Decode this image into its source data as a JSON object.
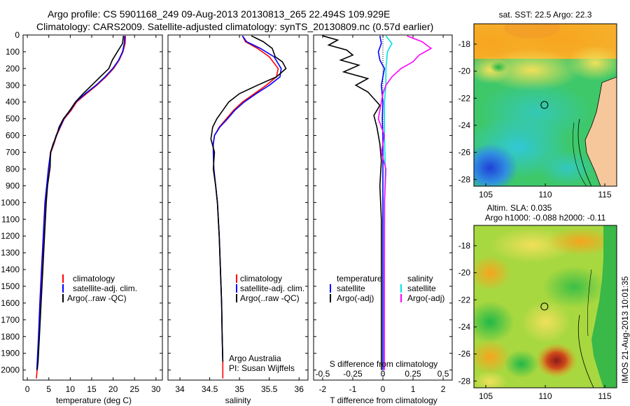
{
  "header": {
    "line1": "Argo profile: CS 5901168_249 09-Aug-2013 20130813_265 22.494S 109.929E",
    "line2": "Climatology: CARS2009. Satellite-adjusted climatology: synTS_20130809.nc (0.57d earlier)"
  },
  "colors": {
    "climatology": "#ff0000",
    "satellite_adj_clim": "#0000ff",
    "argo": "#000000",
    "t_satellite": "#0000ff",
    "s_satellite": "#00e0e0",
    "s_argo": "#ff00ff",
    "land": "#f5c79a"
  },
  "chart_data": [
    {
      "type": "line",
      "panel": "temperature",
      "xlabel": "temperature (deg C)",
      "xlim": [
        -1,
        31.5
      ],
      "xticks": [
        0,
        5,
        10,
        15,
        20,
        25,
        30
      ],
      "ylim": [
        0,
        2060
      ],
      "yticks": [
        0,
        100,
        200,
        300,
        400,
        500,
        600,
        700,
        800,
        900,
        1000,
        1100,
        1200,
        1300,
        1400,
        1500,
        1600,
        1700,
        1800,
        1900,
        2000
      ],
      "legend": [
        "climatology",
        "satellite-adj. clim.",
        "Argo(..raw -QC)"
      ],
      "series": [
        {
          "name": "climatology",
          "x": [
            22.9,
            22.8,
            22.3,
            21.4,
            20.1,
            18.3,
            16.2,
            13.8,
            11.5,
            10.2,
            8.6,
            7.7,
            6.8,
            6.2,
            5.5,
            5.0,
            4.6,
            4.2,
            3.8,
            3.4,
            3.0,
            2.7,
            2.4,
            2.2,
            2.1
          ],
          "y": [
            5,
            50,
            100,
            150,
            200,
            250,
            300,
            350,
            400,
            450,
            500,
            550,
            600,
            650,
            700,
            800,
            900,
            1000,
            1200,
            1400,
            1600,
            1800,
            1950,
            2020,
            2050
          ]
        },
        {
          "name": "satellite-adj. clim.",
          "x": [
            22.7,
            22.6,
            22.2,
            21.3,
            19.9,
            18.1,
            16.0,
            13.5,
            11.3,
            10.0,
            8.5,
            7.6,
            6.7,
            6.1,
            5.4,
            4.9,
            4.5,
            4.1,
            3.7,
            3.3,
            2.9,
            2.6,
            2.3,
            2.2
          ],
          "y": [
            5,
            50,
            100,
            150,
            200,
            250,
            300,
            350,
            400,
            450,
            500,
            550,
            600,
            650,
            700,
            800,
            900,
            1000,
            1200,
            1400,
            1600,
            1800,
            1950,
            2000
          ]
        },
        {
          "name": "Argo(..raw -QC)",
          "x": [
            22.4,
            22.2,
            21.0,
            19.8,
            19.0,
            17.0,
            15.0,
            13.0,
            11.2,
            9.9,
            8.4,
            7.4,
            6.8,
            6.0,
            5.4,
            5.3,
            4.7,
            4.4,
            4.0,
            3.6,
            3.2,
            2.8,
            2.5,
            2.3
          ],
          "y": [
            5,
            50,
            100,
            150,
            200,
            250,
            300,
            350,
            400,
            450,
            500,
            550,
            600,
            650,
            700,
            790,
            900,
            1000,
            1200,
            1400,
            1600,
            1800,
            1950,
            2000
          ]
        }
      ]
    },
    {
      "type": "line",
      "panel": "salinity",
      "xlabel": "salinity",
      "xlim": [
        33.8,
        36.15
      ],
      "xticks": [
        34,
        34.5,
        35,
        35.5,
        36
      ],
      "ylim": [
        0,
        2060
      ],
      "legend": [
        "climatology",
        "satellite-adj. clim.",
        "Argo(..raw -QC)"
      ],
      "annotation": [
        "Argo Australia",
        "PI: Susan Wijffels"
      ],
      "series": [
        {
          "name": "climatology",
          "x": [
            35.05,
            35.1,
            35.3,
            35.5,
            35.65,
            35.62,
            35.45,
            35.25,
            35.05,
            34.9,
            34.78,
            34.66,
            34.58,
            34.56,
            34.56,
            34.57,
            34.6,
            34.63,
            34.66,
            34.68,
            34.7,
            34.71,
            34.72,
            34.72
          ],
          "y": [
            5,
            40,
            80,
            130,
            200,
            250,
            300,
            350,
            400,
            450,
            500,
            550,
            600,
            650,
            700,
            800,
            900,
            1000,
            1200,
            1400,
            1600,
            1800,
            1950,
            2050
          ]
        },
        {
          "name": "satellite-adj. clim.",
          "x": [
            35.05,
            35.12,
            35.35,
            35.58,
            35.7,
            35.68,
            35.5,
            35.28,
            35.08,
            34.92,
            34.8,
            34.67,
            34.58,
            34.56,
            34.56,
            34.57,
            34.6,
            34.63,
            34.66,
            34.68,
            34.7,
            34.71,
            34.72
          ],
          "y": [
            5,
            40,
            80,
            130,
            200,
            250,
            300,
            350,
            400,
            450,
            500,
            550,
            600,
            650,
            700,
            800,
            900,
            1000,
            1200,
            1400,
            1600,
            1800,
            1950
          ]
        },
        {
          "name": "Argo(..raw -QC)",
          "x": [
            35.2,
            35.4,
            35.55,
            35.6,
            35.72,
            35.78,
            35.62,
            35.3,
            35.0,
            34.82,
            34.72,
            34.62,
            34.55,
            34.52,
            34.58,
            34.56,
            34.6,
            34.63,
            34.66,
            34.68,
            34.7,
            34.71,
            34.72
          ],
          "y": [
            5,
            40,
            80,
            130,
            160,
            200,
            250,
            300,
            350,
            400,
            450,
            500,
            550,
            620,
            700,
            800,
            900,
            1000,
            1200,
            1400,
            1600,
            1800,
            1950
          ]
        }
      ]
    },
    {
      "type": "line",
      "panel": "difference",
      "xlabel": "T difference from climatology",
      "xlabel_top": "S difference from climatology",
      "xlim": [
        -2.3,
        2.3
      ],
      "xticks": [
        -2,
        -1,
        0,
        1,
        2
      ],
      "xticks_s": [
        -0.5,
        -0.25,
        0,
        0.25,
        0.5
      ],
      "ylim": [
        0,
        2060
      ],
      "legend_temperature": {
        "title": "temperature",
        "entries": [
          "satellite",
          "Argo(-adj)"
        ]
      },
      "legend_salinity": {
        "title": "salinity",
        "entries": [
          "satellite",
          "Argo(-adj)"
        ]
      },
      "series": [
        {
          "name": "temperature satellite",
          "x": [
            -0.1,
            -0.05,
            -0.15,
            -0.1,
            0.05,
            -0.05,
            0.0,
            -0.02,
            0.0,
            0.0,
            0.0,
            0.0,
            0.0,
            0.0
          ],
          "y": [
            5,
            50,
            100,
            150,
            200,
            300,
            400,
            500,
            600,
            800,
            1000,
            1400,
            1800,
            2000
          ]
        },
        {
          "name": "temperature Argo(-adj)",
          "x": [
            -2.0,
            -1.5,
            -1.8,
            -1.2,
            -1.0,
            -1.4,
            -0.8,
            -1.3,
            -0.5,
            -0.9,
            -0.5,
            -0.3,
            -0.1,
            -0.3,
            -0.2,
            -0.1,
            -0.05,
            -0.1,
            -0.05,
            -0.05,
            -0.05,
            -0.05
          ],
          "y": [
            5,
            30,
            60,
            90,
            120,
            150,
            180,
            220,
            260,
            300,
            340,
            380,
            420,
            480,
            550,
            650,
            750,
            900,
            1100,
            1400,
            1700,
            2000
          ]
        },
        {
          "name": "salinity satellite",
          "x": [
            0.1,
            0.3,
            0.15,
            0.1,
            0.1,
            0.05,
            0.05,
            0.08,
            0.06,
            0.05,
            0.05,
            0.05
          ],
          "y": [
            5,
            50,
            100,
            200,
            300,
            400,
            600,
            800,
            1000,
            1400,
            1800,
            2000
          ]
        },
        {
          "name": "salinity Argo(-adj)",
          "x": [
            0.8,
            1.3,
            1.6,
            1.2,
            1.0,
            0.6,
            0.3,
            0.1,
            0.0,
            -0.05,
            -0.15,
            0.05,
            -0.05,
            0.1,
            0.05,
            0.05,
            0.05,
            0.05
          ],
          "y": [
            5,
            40,
            80,
            120,
            160,
            200,
            250,
            300,
            350,
            400,
            500,
            600,
            700,
            800,
            1000,
            1400,
            1800,
            2000
          ]
        }
      ]
    }
  ],
  "maps": [
    {
      "title": "sat. SST: 22.5 Argo: 22.3",
      "xticks": [
        105,
        110,
        115
      ],
      "yticks": [
        -18,
        -20,
        -22,
        -24,
        -26,
        -28
      ],
      "xlim": [
        104,
        116
      ],
      "ylim": [
        -28.5,
        -16.5
      ],
      "argo_position": {
        "lon": 109.929,
        "lat": -22.494
      }
    },
    {
      "title_line1": "Altim. SLA: 0.035",
      "title_line2": "Argo h1000: -0.088 h2000: -0.11",
      "xticks": [
        105,
        110,
        115
      ],
      "yticks": [
        -18,
        -20,
        -22,
        -24,
        -26,
        -28
      ],
      "xlim": [
        104,
        116
      ],
      "ylim": [
        -28.5,
        -16.5
      ],
      "argo_position": {
        "lon": 109.929,
        "lat": -22.494
      }
    }
  ],
  "footer": "IMOS 21-Aug-2013 10:01:35"
}
